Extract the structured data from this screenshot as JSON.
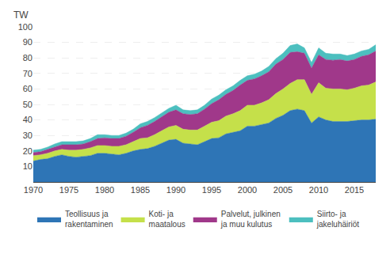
{
  "chart_data": {
    "type": "area",
    "stacked": true,
    "ylabel": "TW",
    "x": [
      1970,
      1971,
      1972,
      1973,
      1974,
      1975,
      1976,
      1977,
      1978,
      1979,
      1980,
      1981,
      1982,
      1983,
      1984,
      1985,
      1986,
      1987,
      1988,
      1989,
      1990,
      1991,
      1992,
      1993,
      1994,
      1995,
      1996,
      1997,
      1998,
      1999,
      2000,
      2001,
      2002,
      2003,
      2004,
      2005,
      2006,
      2007,
      2008,
      2009,
      2010,
      2011,
      2012,
      2013,
      2014,
      2015,
      2016,
      2017,
      2018
    ],
    "series": [
      {
        "name": "Teollisuus ja\nrakentaminen",
        "color": "#2e75b6",
        "values": [
          13.5,
          14.5,
          15.0,
          16.5,
          17.5,
          16.5,
          16.0,
          16.5,
          17.0,
          18.5,
          18.5,
          18.0,
          17.5,
          18.5,
          20.0,
          21.0,
          21.5,
          23.0,
          25.0,
          27.0,
          27.5,
          25.0,
          24.5,
          24.0,
          26.0,
          28.0,
          28.5,
          31.0,
          32.0,
          33.0,
          36.0,
          36.0,
          37.0,
          38.0,
          41.0,
          43.0,
          46.0,
          47.0,
          46.0,
          38.0,
          42.0,
          40.0,
          39.0,
          39.0,
          39.0,
          39.5,
          40.0,
          40.0,
          40.5
        ]
      },
      {
        "name": "Koti- ja\nmaatalous",
        "color": "#c5e04a",
        "values": [
          3.5,
          3.0,
          3.5,
          3.5,
          3.5,
          4.0,
          4.5,
          4.5,
          5.0,
          5.0,
          5.0,
          5.0,
          5.5,
          5.5,
          6.0,
          7.0,
          7.0,
          7.5,
          8.0,
          8.5,
          9.0,
          9.0,
          9.0,
          9.5,
          10.0,
          10.5,
          11.0,
          11.5,
          12.0,
          13.0,
          13.5,
          13.5,
          14.0,
          15.0,
          16.0,
          17.0,
          17.5,
          19.0,
          20.0,
          18.5,
          22.0,
          20.5,
          21.0,
          21.0,
          20.5,
          21.0,
          22.0,
          22.5,
          24.0
        ]
      },
      {
        "name": "Palvelut, julkinen\nja muu kulutus",
        "color": "#a0388a",
        "values": [
          2.0,
          2.0,
          2.5,
          2.5,
          3.0,
          3.5,
          3.5,
          3.5,
          4.0,
          4.5,
          5.0,
          5.0,
          5.0,
          5.5,
          6.0,
          7.0,
          8.0,
          8.5,
          9.0,
          9.5,
          10.0,
          10.0,
          10.0,
          10.5,
          11.0,
          12.0,
          13.5,
          14.0,
          15.0,
          16.5,
          16.0,
          17.0,
          17.5,
          18.0,
          19.0,
          19.0,
          20.0,
          18.0,
          17.0,
          17.0,
          18.0,
          18.5,
          18.5,
          19.0,
          18.5,
          18.5,
          19.0,
          19.5,
          20.0
        ]
      },
      {
        "name": "Siirto- ja\njakeluhäiriöt",
        "color": "#4cbfbf",
        "values": [
          1.5,
          1.5,
          1.5,
          2.0,
          2.0,
          2.0,
          2.0,
          2.0,
          2.0,
          2.5,
          2.0,
          2.0,
          2.0,
          2.0,
          2.0,
          2.5,
          2.5,
          2.5,
          2.5,
          2.5,
          3.0,
          2.5,
          2.5,
          2.5,
          2.5,
          3.0,
          3.0,
          3.0,
          3.0,
          3.0,
          3.0,
          3.0,
          3.0,
          3.5,
          3.5,
          4.0,
          4.5,
          5.0,
          3.5,
          3.5,
          4.5,
          4.0,
          4.0,
          3.5,
          3.5,
          3.5,
          3.5,
          3.5,
          4.0
        ]
      }
    ],
    "xlim": [
      1970,
      2018
    ],
    "xticks": [
      1970,
      1975,
      1980,
      1985,
      1990,
      1995,
      2000,
      2005,
      2010,
      2015
    ],
    "ylim": [
      0,
      100
    ],
    "yticks": [
      10,
      20,
      30,
      40,
      50,
      60,
      70,
      80,
      90,
      100
    ],
    "grid": true,
    "legend": "bottom"
  }
}
